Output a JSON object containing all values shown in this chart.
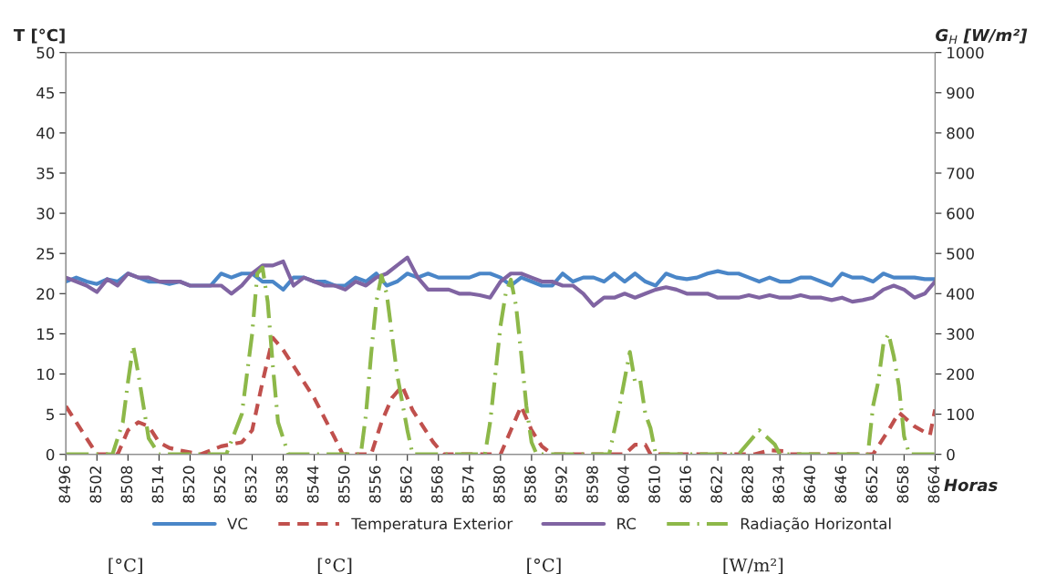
{
  "chart_data": {
    "type": "line",
    "xlabel": "Horas",
    "ylabel": "T [°C]",
    "y2label": "G$_{H}$ [W/m²]",
    "xlim": [
      8496,
      8664
    ],
    "xticks": [
      8496,
      8502,
      8508,
      8514,
      8520,
      8526,
      8532,
      8538,
      8544,
      8550,
      8556,
      8562,
      8568,
      8574,
      8580,
      8586,
      8592,
      8598,
      8604,
      8610,
      8616,
      8622,
      8628,
      8634,
      8640,
      8646,
      8652,
      8658,
      8664
    ],
    "ylim": [
      0,
      50
    ],
    "yticks": [
      0,
      5,
      10,
      15,
      20,
      25,
      30,
      35,
      40,
      45,
      50
    ],
    "y2lim": [
      0,
      1000
    ],
    "y2ticks": [
      0,
      100,
      200,
      300,
      400,
      500,
      600,
      700,
      800,
      900,
      1000
    ],
    "grid": false,
    "legend": "bottom",
    "marker": "none",
    "annotations": [
      "[°C]",
      "[°C]",
      "[°C]",
      "[W/m²]"
    ],
    "series": [
      {
        "name": "VC",
        "color": "#4a86c8",
        "line_style": "solid",
        "x": [
          8496,
          8498,
          8500,
          8502,
          8504,
          8506,
          8508,
          8510,
          8512,
          8514,
          8516,
          8518,
          8520,
          8522,
          8524,
          8526,
          8528,
          8530,
          8532,
          8534,
          8536,
          8538,
          8540,
          8542,
          8544,
          8546,
          8548,
          8550,
          8552,
          8554,
          8556,
          8558,
          8560,
          8562,
          8564,
          8566,
          8568,
          8570,
          8572,
          8574,
          8576,
          8578,
          8580,
          8582,
          8584,
          8586,
          8588,
          8590,
          8592,
          8594,
          8596,
          8598,
          8600,
          8602,
          8604,
          8606,
          8608,
          8610,
          8612,
          8614,
          8616,
          8618,
          8620,
          8622,
          8624,
          8626,
          8628,
          8630,
          8632,
          8634,
          8636,
          8638,
          8640,
          8642,
          8644,
          8646,
          8648,
          8650,
          8652,
          8654,
          8656,
          8658,
          8660,
          8662,
          8664
        ],
        "values": [
          21.5,
          22,
          21.5,
          21.2,
          21.8,
          21.5,
          22.5,
          22,
          21.5,
          21.5,
          21.2,
          21.5,
          21,
          21,
          21,
          22.5,
          22,
          22.5,
          22.5,
          21.5,
          21.5,
          20.5,
          22,
          22,
          21.5,
          21.5,
          21,
          21,
          22,
          21.5,
          22.5,
          21,
          21.5,
          22.5,
          22,
          22.5,
          22,
          22,
          22,
          22,
          22.5,
          22.5,
          22,
          21,
          22,
          21.5,
          21,
          21,
          22.5,
          21.5,
          22,
          22,
          21.5,
          22.5,
          21.5,
          22.5,
          21.5,
          21,
          22.5,
          22,
          21.8,
          22,
          22.5,
          22.8,
          22.5,
          22.5,
          22,
          21.5,
          22,
          21.5,
          21.5,
          22,
          22,
          21.5,
          21,
          22.5,
          22,
          22,
          21.5,
          22.5,
          22,
          22,
          22,
          21.8,
          21.8
        ]
      },
      {
        "name": "Temperatura Exterior",
        "color": "#c0504d",
        "line_style": "dashed",
        "x": [
          8496,
          8498,
          8500,
          8502,
          8506,
          8508,
          8510,
          8512,
          8514,
          8516,
          8518,
          8522,
          8526,
          8530,
          8532,
          8534,
          8536,
          8538,
          8540,
          8542,
          8544,
          8546,
          8548,
          8549.5,
          8555,
          8557,
          8559,
          8561,
          8563,
          8565,
          8567,
          8569,
          8580,
          8582,
          8584,
          8586,
          8588,
          8590,
          8604,
          8606,
          8608,
          8609,
          8629,
          8632,
          8635,
          8636,
          8652,
          8655,
          8657,
          8660,
          8663,
          8664
        ],
        "values": [
          6,
          4,
          2,
          0,
          0,
          3,
          4,
          3.5,
          1.5,
          0.8,
          0.5,
          0,
          1,
          1.5,
          3,
          9,
          14.5,
          13,
          11,
          9,
          7,
          4.5,
          2,
          0,
          0,
          4,
          7,
          8.5,
          5.5,
          3.5,
          1.5,
          0,
          0,
          3,
          6,
          3,
          1,
          0,
          0,
          1.2,
          1.2,
          0,
          0,
          0.5,
          0.4,
          0,
          0,
          3,
          5.2,
          3.5,
          2.4,
          5.6
        ]
      },
      {
        "name": "RC",
        "color": "#8064a2",
        "line_style": "solid",
        "x": [
          8496,
          8498,
          8500,
          8502,
          8504,
          8506,
          8508,
          8510,
          8512,
          8514,
          8516,
          8518,
          8520,
          8522,
          8524,
          8526,
          8528,
          8530,
          8532,
          8534,
          8536,
          8538,
          8540,
          8542,
          8544,
          8546,
          8548,
          8550,
          8552,
          8554,
          8556,
          8558,
          8560,
          8562,
          8564,
          8566,
          8568,
          8570,
          8572,
          8574,
          8576,
          8578,
          8580,
          8582,
          8584,
          8586,
          8588,
          8590,
          8592,
          8594,
          8596,
          8598,
          8600,
          8602,
          8604,
          8606,
          8608,
          8610,
          8612,
          8614,
          8616,
          8618,
          8620,
          8622,
          8624,
          8626,
          8628,
          8630,
          8632,
          8634,
          8636,
          8638,
          8640,
          8642,
          8644,
          8646,
          8648,
          8650,
          8652,
          8654,
          8656,
          8658,
          8660,
          8662,
          8664
        ],
        "values": [
          22,
          21.5,
          21,
          20.2,
          21.8,
          21,
          22.5,
          22,
          22,
          21.5,
          21.5,
          21.5,
          21,
          21,
          21,
          21,
          20,
          21,
          22.5,
          23.5,
          23.5,
          24,
          21,
          22,
          21.5,
          21,
          21,
          20.5,
          21.5,
          21,
          22,
          22.5,
          23.5,
          24.5,
          22,
          20.5,
          20.5,
          20.5,
          20,
          20,
          19.8,
          19.5,
          21.5,
          22.5,
          22.5,
          22,
          21.5,
          21.5,
          21,
          21,
          20,
          18.5,
          19.5,
          19.5,
          20,
          19.5,
          20,
          20.5,
          20.8,
          20.5,
          20,
          20,
          20,
          19.5,
          19.5,
          19.5,
          19.8,
          19.5,
          19.8,
          19.5,
          19.5,
          19.8,
          19.5,
          19.5,
          19.2,
          19.5,
          19,
          19.2,
          19.5,
          20.5,
          21,
          20.5,
          19.5,
          20,
          21.5
        ]
      },
      {
        "name": "Radiação Horizontal",
        "color": "#8db849",
        "line_style": "dashdot",
        "axis": "y2",
        "x": [
          8496,
          8505,
          8507,
          8508,
          8509,
          8510,
          8511,
          8512,
          8513,
          8514,
          8527,
          8530,
          8532,
          8533,
          8534,
          8535,
          8536,
          8537,
          8539,
          8553,
          8554,
          8555,
          8556,
          8557,
          8558,
          8560,
          8562,
          8563,
          8577,
          8578,
          8579,
          8580,
          8581,
          8582,
          8583,
          8584,
          8585,
          8586,
          8587,
          8601,
          8603,
          8605,
          8606,
          8607,
          8608,
          8609,
          8610,
          8626,
          8628,
          8630,
          8633,
          8634,
          8651,
          8652,
          8653,
          8654,
          8655,
          8656,
          8657,
          8658,
          8659,
          8664
        ],
        "values": [
          0,
          0,
          80,
          180,
          270,
          200,
          120,
          40,
          20,
          0,
          0,
          100,
          300,
          450,
          465,
          380,
          220,
          80,
          0,
          0,
          100,
          250,
          380,
          445,
          400,
          200,
          60,
          0,
          0,
          80,
          200,
          320,
          400,
          435,
          370,
          250,
          120,
          30,
          0,
          0,
          120,
          255,
          180,
          185,
          100,
          65,
          0,
          0,
          30,
          60,
          25,
          0,
          0,
          120,
          180,
          275,
          300,
          245,
          170,
          45,
          0,
          0
        ]
      }
    ]
  }
}
